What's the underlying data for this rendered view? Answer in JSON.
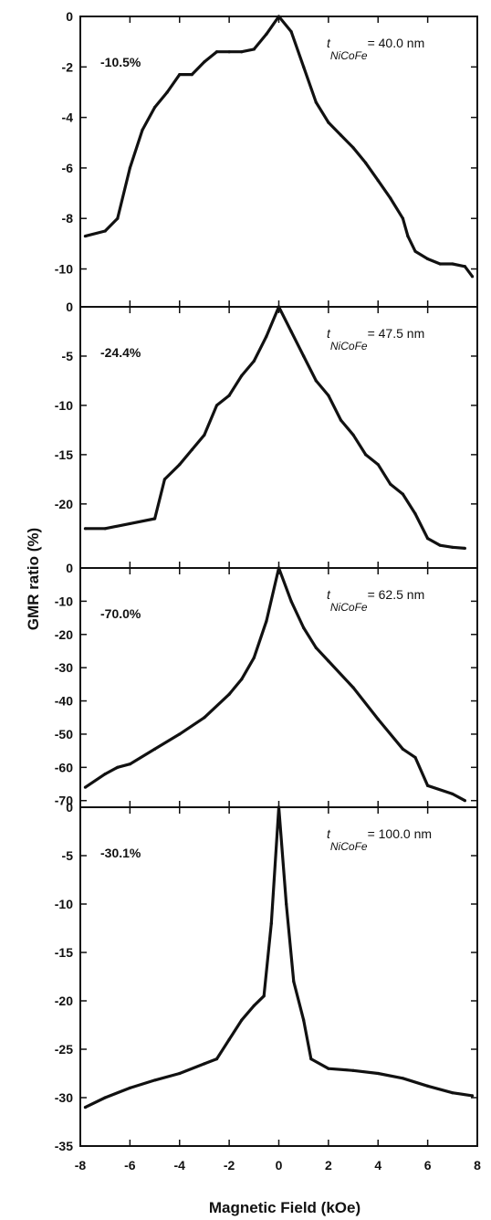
{
  "chart_data": {
    "type": "line",
    "xlabel": "Magnetic Field (kOe)",
    "ylabel": "GMR ratio (%)",
    "x_ticks": [
      "-8",
      "-6",
      "-4",
      "-2",
      "0",
      "2",
      "4",
      "6",
      "8"
    ],
    "xlim": [
      -8,
      8
    ],
    "grid": false,
    "panels": [
      {
        "annotation": "-10.5%",
        "thickness_label": {
          "prefix": "t",
          "subscript": "NiCoFe",
          "value": "= 40.0 nm"
        },
        "ylim": [
          -11.5,
          0
        ],
        "y_ticks": [
          "0",
          "-2",
          "-4",
          "-6",
          "-8",
          "-10"
        ],
        "series": [
          {
            "x": [
              -7.8,
              -7.0,
              -6.5,
              -6.0,
              -5.5,
              -5.0,
              -4.5,
              -4.0,
              -3.5,
              -3.0,
              -2.5,
              -2.0,
              -1.5,
              -1.0,
              -0.5,
              0.0,
              0.5,
              1.0,
              1.5,
              2.0,
              2.5,
              3.0,
              3.5,
              4.0,
              4.5,
              5.0,
              5.2,
              5.5,
              6.0,
              6.5,
              7.0,
              7.5,
              7.8
            ],
            "y": [
              -8.7,
              -8.5,
              -8.0,
              -6.0,
              -4.5,
              -3.6,
              -3.0,
              -2.3,
              -2.3,
              -1.8,
              -1.4,
              -1.4,
              -1.4,
              -1.3,
              -0.7,
              0.0,
              -0.6,
              -2.0,
              -3.4,
              -4.2,
              -4.7,
              -5.2,
              -5.8,
              -6.5,
              -7.2,
              -8.0,
              -8.7,
              -9.3,
              -9.6,
              -9.8,
              -9.8,
              -9.9,
              -10.3
            ]
          }
        ]
      },
      {
        "annotation": "-24.4%",
        "thickness_label": {
          "prefix": "t",
          "subscript": "NiCoFe",
          "value": "= 47.5 nm"
        },
        "ylim": [
          -26.5,
          0
        ],
        "y_ticks": [
          "0",
          "-5",
          "-10",
          "-15",
          "-20"
        ],
        "series": [
          {
            "x": [
              -7.8,
              -7.0,
              -6.0,
              -5.0,
              -4.6,
              -4.0,
              -3.5,
              -3.0,
              -2.5,
              -2.0,
              -1.5,
              -1.0,
              -0.5,
              0.0,
              0.5,
              1.0,
              1.5,
              2.0,
              2.5,
              3.0,
              3.5,
              4.0,
              4.5,
              5.0,
              5.5,
              6.0,
              6.5,
              7.0,
              7.5
            ],
            "y": [
              -22.5,
              -22.5,
              -22.0,
              -21.5,
              -17.5,
              -16.0,
              -14.5,
              -13.0,
              -10.0,
              -9.0,
              -7.0,
              -5.5,
              -3.0,
              0.0,
              -2.5,
              -5.0,
              -7.5,
              -9.0,
              -11.5,
              -13.0,
              -15.0,
              -16.0,
              -18.0,
              -19.0,
              -21.0,
              -23.5,
              -24.2,
              -24.4,
              -24.5
            ]
          }
        ]
      },
      {
        "annotation": "-70.0%",
        "thickness_label": {
          "prefix": "t",
          "subscript": "NiCoFe",
          "value": "= 62.5 nm"
        },
        "ylim": [
          -72,
          0
        ],
        "y_ticks": [
          "0",
          "-10",
          "-20",
          "-30",
          "-40",
          "-50",
          "-60",
          "-70"
        ],
        "series": [
          {
            "x": [
              -7.8,
              -7.0,
              -6.5,
              -6.0,
              -5.0,
              -4.0,
              -3.0,
              -2.0,
              -1.5,
              -1.0,
              -0.5,
              0.0,
              0.5,
              1.0,
              1.5,
              2.0,
              3.0,
              4.0,
              5.0,
              5.5,
              6.0,
              7.0,
              7.5
            ],
            "y": [
              -66.0,
              -62.0,
              -60.0,
              -59.0,
              -54.5,
              -50.0,
              -45.0,
              -38.0,
              -33.5,
              -27.0,
              -16.0,
              0.0,
              -10.0,
              -18.0,
              -24.0,
              -28.0,
              -36.0,
              -45.5,
              -54.5,
              -57.0,
              -65.5,
              -68.0,
              -70.0
            ]
          }
        ]
      },
      {
        "annotation": "-30.1%",
        "thickness_label": {
          "prefix": "t",
          "subscript": "NiCoFe",
          "value": "= 100.0 nm"
        },
        "ylim": [
          -35,
          0
        ],
        "y_ticks": [
          "0",
          "-5",
          "-10",
          "-15",
          "-20",
          "-25",
          "-30",
          "-35"
        ],
        "series": [
          {
            "x": [
              -7.8,
              -7.0,
              -6.0,
              -5.0,
              -4.0,
              -3.0,
              -2.5,
              -2.0,
              -1.5,
              -1.0,
              -0.6,
              -0.3,
              0.0,
              0.3,
              0.6,
              1.0,
              1.3,
              2.0,
              3.0,
              4.0,
              5.0,
              6.0,
              7.0,
              7.8
            ],
            "y": [
              -31.0,
              -30.0,
              -29.0,
              -28.2,
              -27.5,
              -26.5,
              -26.0,
              -24.0,
              -22.0,
              -20.5,
              -19.5,
              -12.0,
              0.0,
              -10.0,
              -18.0,
              -22.0,
              -26.0,
              -27.0,
              -27.2,
              -27.5,
              -28.0,
              -28.8,
              -29.5,
              -29.8
            ]
          }
        ]
      }
    ]
  }
}
